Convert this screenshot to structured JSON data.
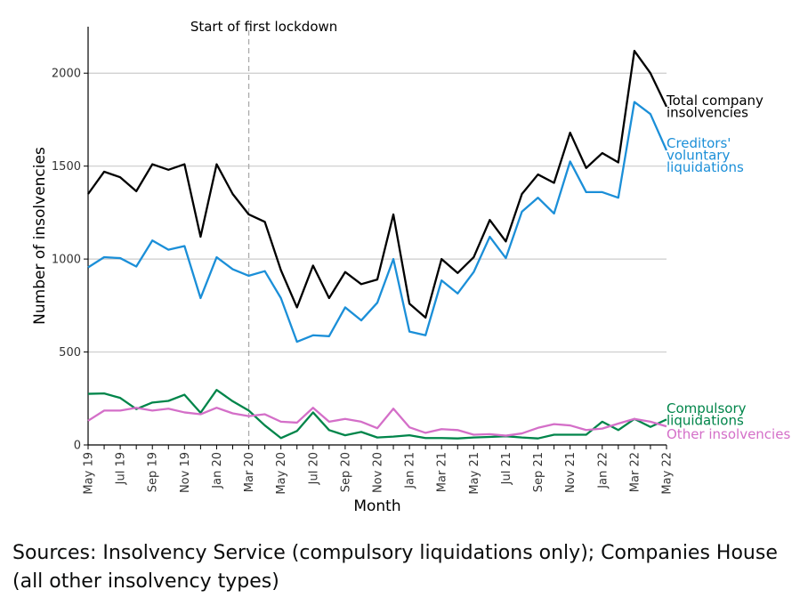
{
  "chart_data": {
    "type": "line",
    "ylabel": "Number of insolvencies",
    "xlabel": "Month",
    "ylim": [
      0,
      2250
    ],
    "yticks": [
      0,
      500,
      1000,
      1500,
      2000
    ],
    "grid": "horizontal",
    "x": [
      "May 19",
      "Jun 19",
      "Jul 19",
      "Aug 19",
      "Sep 19",
      "Oct 19",
      "Nov 19",
      "Dec 19",
      "Jan 20",
      "Feb 20",
      "Mar 20",
      "Apr 20",
      "May 20",
      "Jun 20",
      "Jul 20",
      "Aug 20",
      "Sep 20",
      "Oct 20",
      "Nov 20",
      "Dec 20",
      "Jan 21",
      "Feb 21",
      "Mar 21",
      "Apr 21",
      "May 21",
      "Jun 21",
      "Jul 21",
      "Aug 21",
      "Sep 21",
      "Oct 21",
      "Nov 21",
      "Dec 21",
      "Jan 22",
      "Feb 22",
      "Mar 22",
      "Apr 22",
      "May 22"
    ],
    "xtick_labels": [
      "May 19",
      "Jul 19",
      "Sep 19",
      "Nov 19",
      "Jan 20",
      "Mar 20",
      "May 20",
      "Jul 20",
      "Sep 20",
      "Nov 20",
      "Jan 21",
      "Mar 21",
      "May 21",
      "Jul 21",
      "Sep 21",
      "Nov 21",
      "Jan 22",
      "Mar 22",
      "May 22"
    ],
    "annotation": {
      "label": "Start of first lockdown",
      "x": "Mar 20"
    },
    "series": [
      {
        "name": "Total company insolvencies",
        "color": "#000000",
        "values": [
          1350,
          1470,
          1440,
          1365,
          1510,
          1480,
          1510,
          1120,
          1510,
          1350,
          1240,
          1200,
          940,
          740,
          965,
          790,
          930,
          865,
          890,
          1240,
          760,
          685,
          1000,
          925,
          1010,
          1210,
          1095,
          1350,
          1455,
          1410,
          1680,
          1490,
          1570,
          1520,
          2120,
          2000,
          1820
        ]
      },
      {
        "name": "Creditors' voluntary liquidations",
        "color": "#1b8fd8",
        "values": [
          955,
          1010,
          1005,
          960,
          1100,
          1050,
          1070,
          790,
          1010,
          945,
          910,
          935,
          790,
          555,
          590,
          585,
          740,
          670,
          765,
          1000,
          610,
          590,
          885,
          815,
          930,
          1120,
          1005,
          1255,
          1330,
          1245,
          1525,
          1360,
          1360,
          1330,
          1845,
          1780,
          1585
        ]
      },
      {
        "name": "Compulsory liquidations",
        "color": "#00854a",
        "values": [
          275,
          277,
          253,
          193,
          228,
          237,
          270,
          173,
          296,
          235,
          185,
          105,
          37,
          75,
          175,
          80,
          52,
          70,
          40,
          45,
          52,
          37,
          37,
          35,
          40,
          43,
          47,
          40,
          35,
          55,
          55,
          55,
          125,
          80,
          140,
          97,
          137
        ]
      },
      {
        "name": "Other insolvencies",
        "color": "#d46fc8",
        "values": [
          130,
          185,
          185,
          200,
          185,
          195,
          175,
          165,
          200,
          170,
          155,
          165,
          125,
          120,
          200,
          125,
          140,
          125,
          90,
          195,
          95,
          65,
          85,
          80,
          55,
          58,
          50,
          62,
          92,
          112,
          105,
          80,
          88,
          115,
          140,
          125,
          100
        ]
      }
    ]
  },
  "source_note": "Sources: Insolvency Service (compulsory liquidations only); Companies House (all other insolvency types)"
}
